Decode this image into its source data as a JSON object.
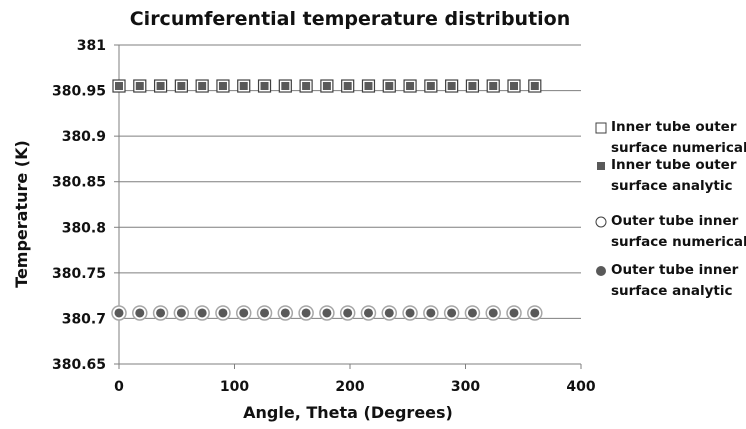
{
  "chart_data": {
    "type": "scatter",
    "title": "Circumferential temperature distribution",
    "xlabel": "Angle, Theta (Degrees)",
    "ylabel": "Temperature (K)",
    "xlim": [
      0,
      400
    ],
    "ylim": [
      380.65,
      381
    ],
    "xticks": [
      "0",
      "100",
      "200",
      "300",
      "400"
    ],
    "yticks": [
      "380.65",
      "380.7",
      "380.75",
      "380.8",
      "380.85",
      "380.9",
      "380.95",
      "381"
    ],
    "grid": "horizontal",
    "legend_position": "right",
    "x": [
      0,
      18,
      36,
      54,
      72,
      90,
      108,
      126,
      144,
      162,
      180,
      198,
      216,
      234,
      252,
      270,
      288,
      306,
      324,
      342,
      360
    ],
    "series": [
      {
        "name": "Inner tube outer surface numerical",
        "marker": "square-open",
        "values": [
          380.955,
          380.955,
          380.955,
          380.955,
          380.955,
          380.955,
          380.955,
          380.955,
          380.955,
          380.955,
          380.955,
          380.955,
          380.955,
          380.955,
          380.955,
          380.955,
          380.955,
          380.955,
          380.955,
          380.955,
          380.955
        ]
      },
      {
        "name": "Inner tube outer surface analytic",
        "marker": "square-filled",
        "values": [
          380.955,
          380.955,
          380.955,
          380.955,
          380.955,
          380.955,
          380.955,
          380.955,
          380.955,
          380.955,
          380.955,
          380.955,
          380.955,
          380.955,
          380.955,
          380.955,
          380.955,
          380.955,
          380.955,
          380.955,
          380.955
        ]
      },
      {
        "name": "Outer tube inner surface numerical",
        "marker": "circle-open",
        "values": [
          380.706,
          380.706,
          380.706,
          380.706,
          380.706,
          380.706,
          380.706,
          380.706,
          380.706,
          380.706,
          380.706,
          380.706,
          380.706,
          380.706,
          380.706,
          380.706,
          380.706,
          380.706,
          380.706,
          380.706,
          380.706
        ]
      },
      {
        "name": "Outer tube inner surface analytic",
        "marker": "circle-filled",
        "values": [
          380.706,
          380.706,
          380.706,
          380.706,
          380.706,
          380.706,
          380.706,
          380.706,
          380.706,
          380.706,
          380.706,
          380.706,
          380.706,
          380.706,
          380.706,
          380.706,
          380.706,
          380.706,
          380.706,
          380.706,
          380.706
        ]
      }
    ],
    "legend": [
      {
        "line1": "Inner tube outer",
        "line2": "surface numerical"
      },
      {
        "line1": "Inner tube outer",
        "line2": "surface analytic"
      },
      {
        "line1": "Outer tube inner",
        "line2": "surface numerical"
      },
      {
        "line1": "Outer tube inner",
        "line2": "surface analytic"
      }
    ],
    "colors": {
      "filled": "#595959",
      "open_stroke": "#404040",
      "circle_ring": "#a6a6a6",
      "grid": "#7f7f7f"
    }
  }
}
